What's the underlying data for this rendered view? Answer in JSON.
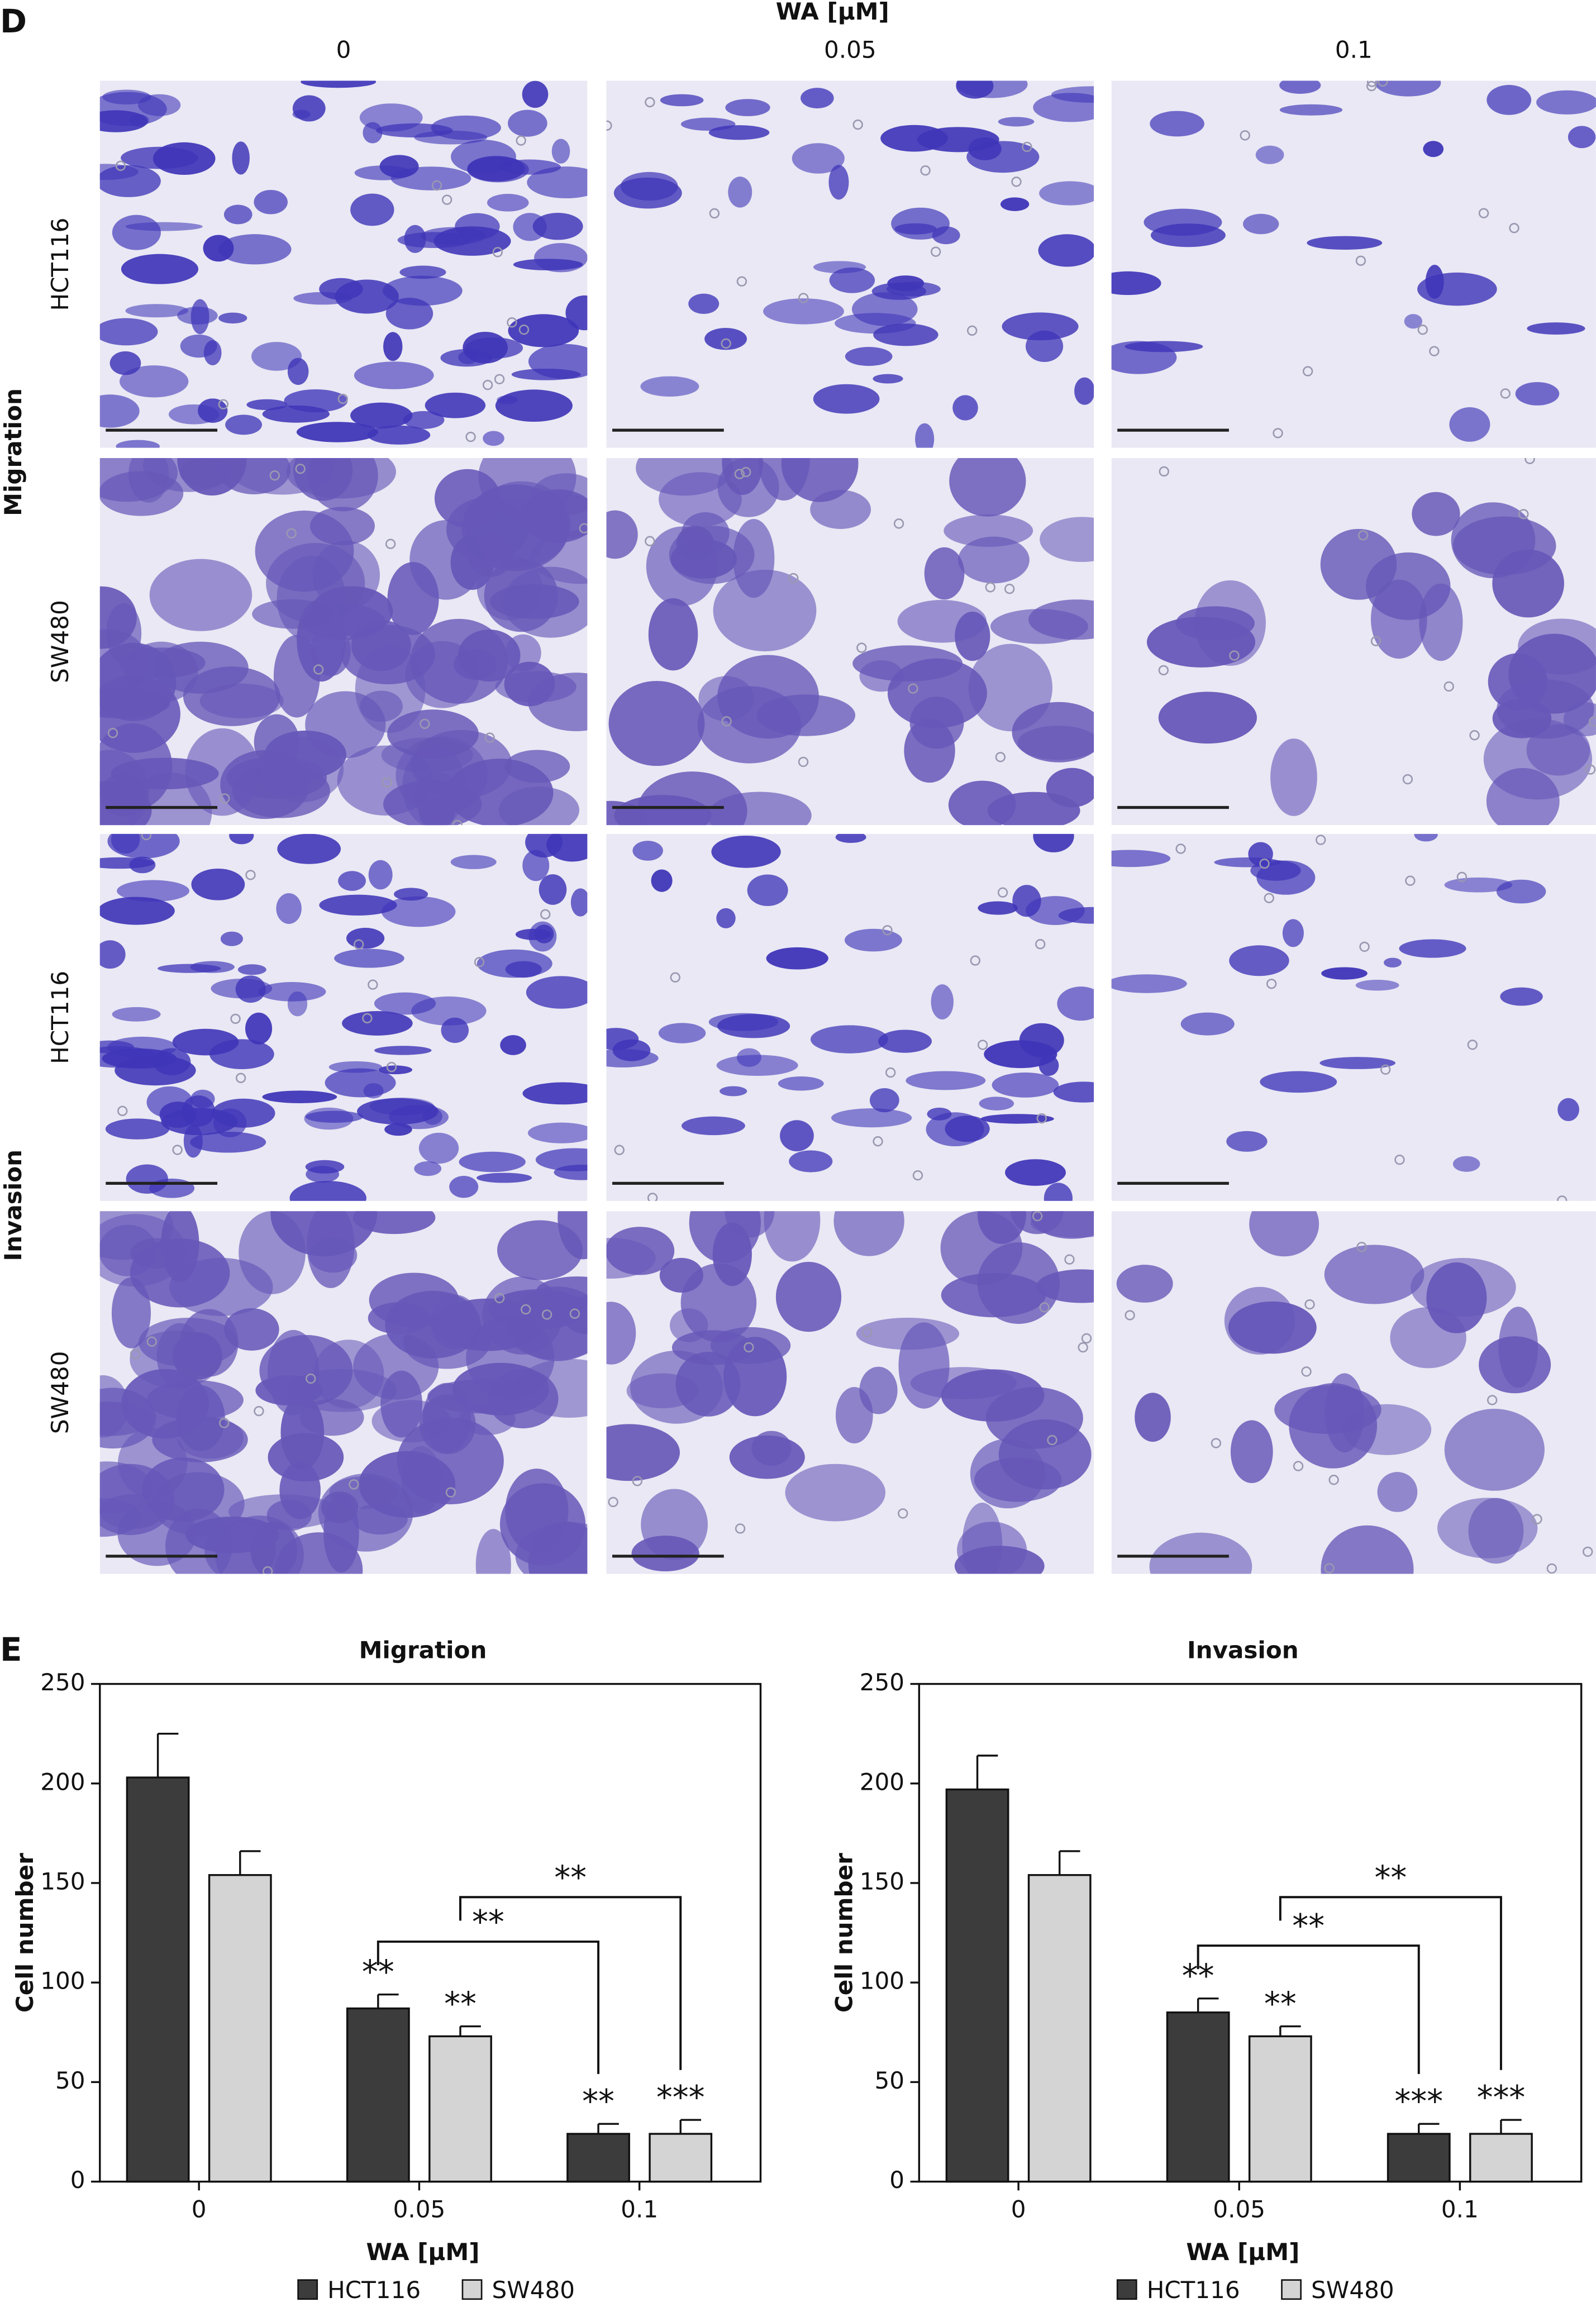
{
  "panel_d": {
    "label": "D",
    "x_title": "WA [μM]",
    "columns": [
      "0",
      "0.05",
      "0.1"
    ],
    "groups": [
      "Migration",
      "Invasion"
    ],
    "rows": [
      "HCT116",
      "SW480",
      "HCT116",
      "SW480"
    ]
  },
  "panel_e": {
    "label": "E"
  },
  "chart_data": [
    {
      "type": "bar",
      "title": "Migration",
      "x_label": "WA [μM]",
      "y_label": "Cell number",
      "categories": [
        "0",
        "0.05",
        "0.1"
      ],
      "series": [
        {
          "name": "HCT116",
          "color": "#3c3c3c",
          "values": [
            203,
            87,
            24
          ],
          "errors": [
            22,
            7,
            5
          ],
          "significance": [
            null,
            "**",
            "**"
          ],
          "bracket_label": "**"
        },
        {
          "name": "SW480",
          "color": "#d4d4d4",
          "values": [
            154,
            73,
            24
          ],
          "errors": [
            12,
            5,
            7
          ],
          "significance": [
            null,
            "**",
            "***"
          ],
          "bracket_label": "**"
        }
      ],
      "ylim": [
        0,
        250
      ],
      "yticks": [
        0,
        50,
        100,
        150,
        200,
        250
      ],
      "legend": "bottom"
    },
    {
      "type": "bar",
      "title": "Invasion",
      "x_label": "WA [μM]",
      "y_label": "Cell number",
      "categories": [
        "0",
        "0.05",
        "0.1"
      ],
      "series": [
        {
          "name": "HCT116",
          "color": "#3c3c3c",
          "values": [
            197,
            85,
            24
          ],
          "errors": [
            17,
            7,
            5
          ],
          "significance": [
            null,
            "**",
            "***"
          ],
          "bracket_label": "**"
        },
        {
          "name": "SW480",
          "color": "#d4d4d4",
          "values": [
            154,
            73,
            24
          ],
          "errors": [
            12,
            5,
            7
          ],
          "significance": [
            null,
            "**",
            "***"
          ],
          "bracket_label": "**"
        }
      ],
      "ylim": [
        0,
        250
      ],
      "yticks": [
        0,
        50,
        100,
        150,
        200,
        250
      ],
      "legend": "bottom"
    }
  ]
}
